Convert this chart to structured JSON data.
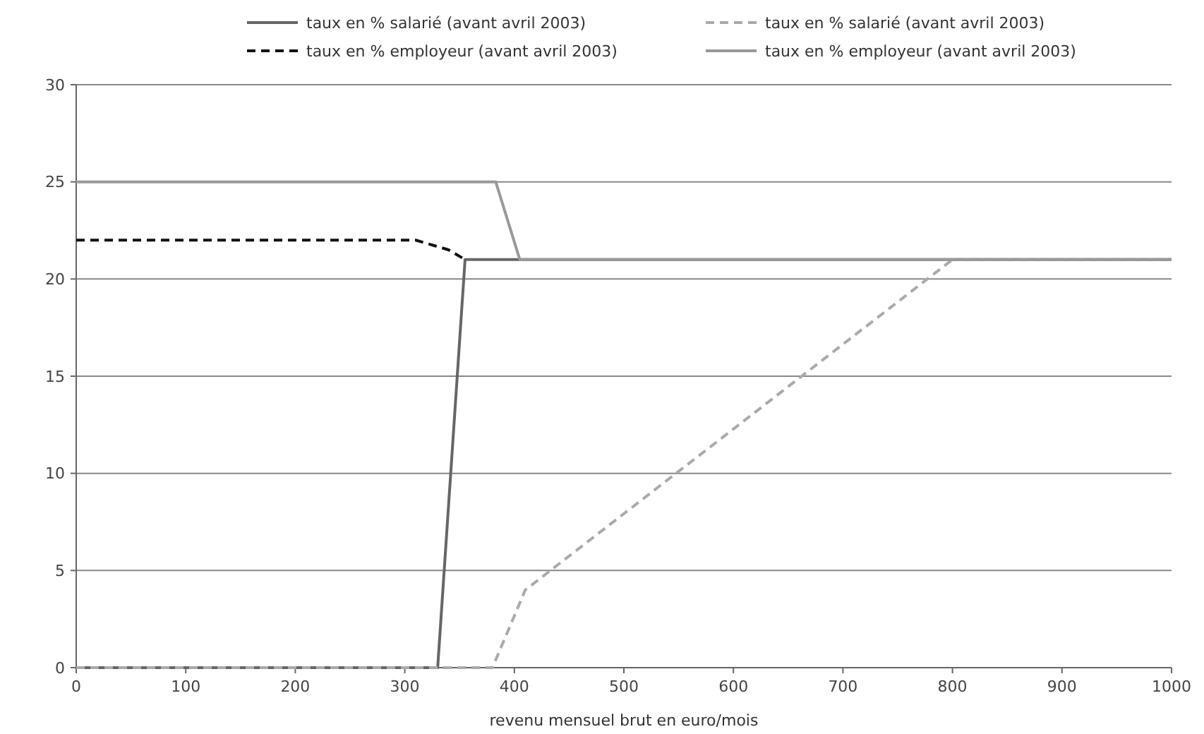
{
  "chart_data": {
    "type": "line",
    "xlabel": "revenu mensuel brut en euro/mois",
    "xlim": [
      0,
      1000
    ],
    "xticks": [
      0,
      100,
      200,
      300,
      400,
      500,
      600,
      700,
      800,
      900,
      1000
    ],
    "ylim": [
      0,
      30
    ],
    "yticks": [
      0,
      5,
      10,
      15,
      20,
      25,
      30
    ],
    "grid": "y",
    "legend": "top",
    "series": [
      {
        "name": "taux en % salarié (avant avril 2003)",
        "color": "#666666",
        "line_style": "solid",
        "x": [
          0,
          330,
          355,
          1000
        ],
        "values": [
          0,
          0,
          21,
          21
        ]
      },
      {
        "name": "taux en % salarié (avant avril 2003)",
        "color": "#aaaaaa",
        "line_style": "dashed",
        "x": [
          0,
          380,
          410,
          800,
          1000
        ],
        "values": [
          0,
          0,
          4,
          21,
          21
        ]
      },
      {
        "name": "taux en % employeur (avant avril 2003)",
        "color": "#111111",
        "line_style": "dashed",
        "x": [
          0,
          310,
          340,
          355
        ],
        "values": [
          22,
          22,
          21.5,
          21
        ]
      },
      {
        "name": "taux en % employeur (avant avril 2003)",
        "color": "#999999",
        "line_style": "solid",
        "x": [
          0,
          383,
          405,
          1000
        ],
        "values": [
          25,
          25,
          21,
          21
        ]
      }
    ]
  }
}
